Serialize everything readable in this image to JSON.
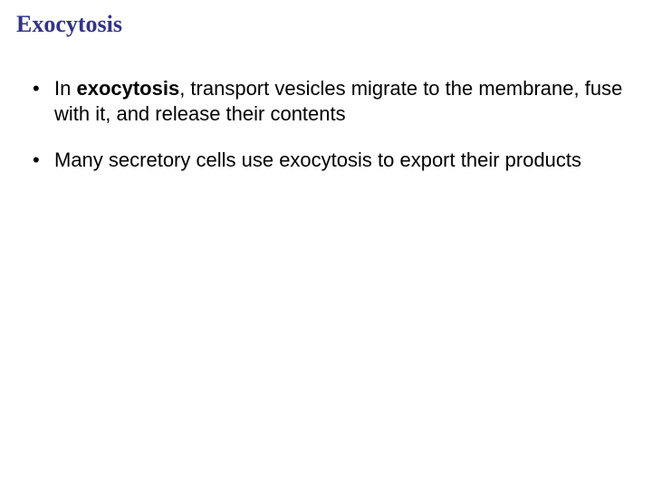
{
  "slide": {
    "title": "Exocytosis",
    "title_color": "#333387",
    "title_fontsize": 26,
    "title_fontfamily": "Times New Roman",
    "background_color": "#ffffff",
    "bullets": [
      {
        "prefix": "In ",
        "bold_term": "exocytosis",
        "suffix": ", transport vesicles migrate to the membrane, fuse with it, and release their contents"
      },
      {
        "text": "Many secretory cells use exocytosis to export their products"
      }
    ],
    "body_fontsize": 22,
    "body_color": "#000000",
    "body_fontfamily": "Arial"
  }
}
